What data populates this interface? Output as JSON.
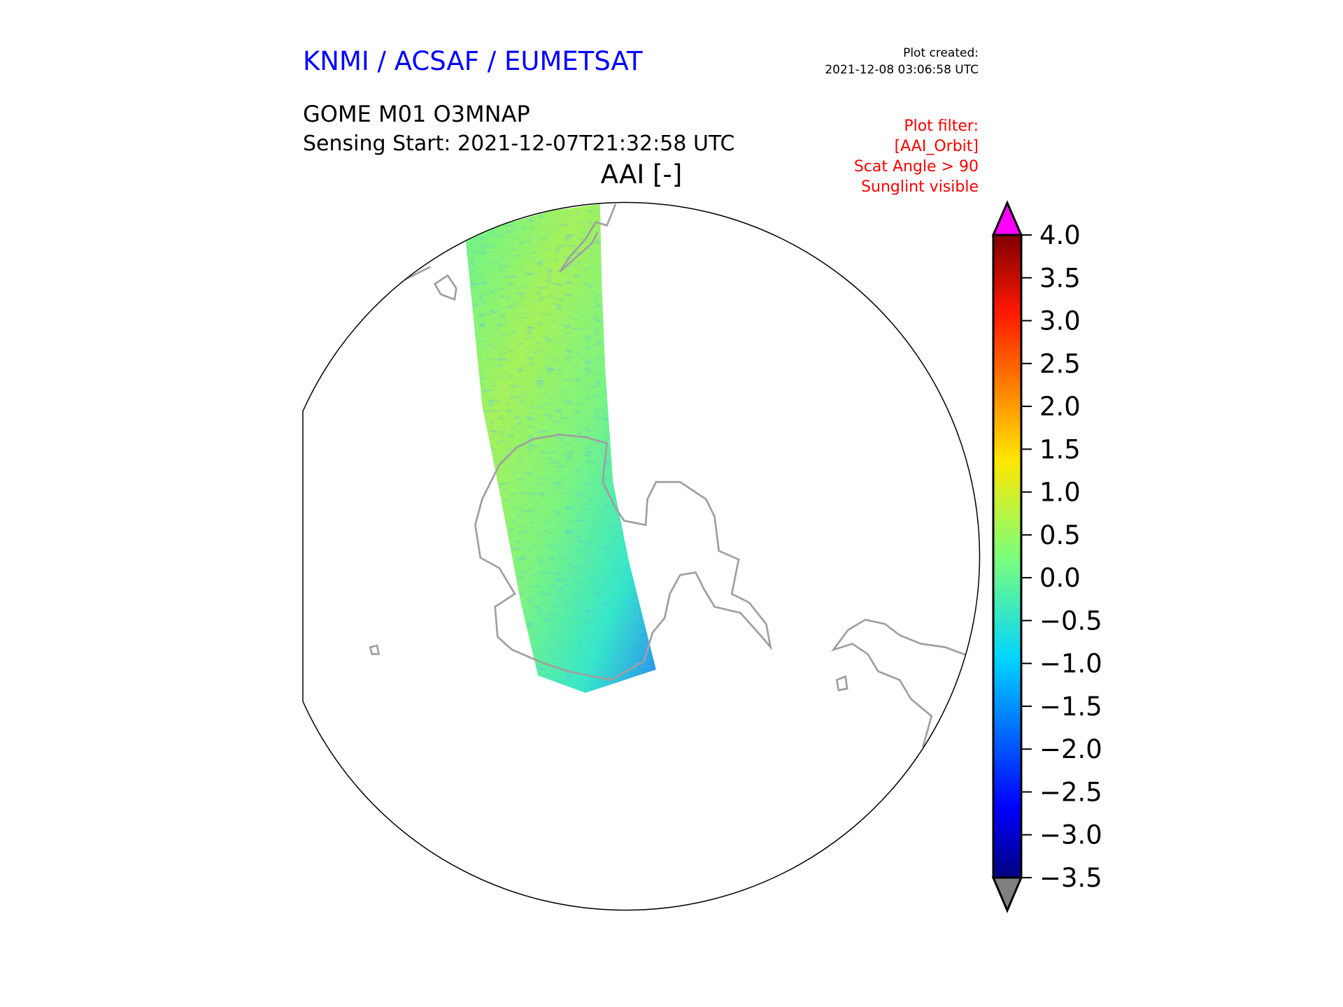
{
  "header": {
    "organization": "KNMI / ACSAF / EUMETSAT",
    "created_label": "Plot created:",
    "created_value": "2021-12-08 03:06:58 UTC",
    "product": "GOME M01 O3MNAP",
    "sensing_start": "Sensing Start: 2021-12-07T21:32:58 UTC",
    "filter_lines": [
      "Plot filter:",
      "[AAI_Orbit]",
      "Scat Angle > 90",
      "Sunglint visible"
    ]
  },
  "chart_data": {
    "type": "heatmap",
    "title": "AAI [-]",
    "projection": "south-polar-stereographic",
    "colorbar": {
      "min": -3.5,
      "max": 4.0,
      "ticks": [
        "4.0",
        "3.5",
        "3.0",
        "2.5",
        "2.0",
        "1.5",
        "1.0",
        "0.5",
        "0.0",
        "−0.5",
        "−1.0",
        "−1.5",
        "−2.0",
        "−2.5",
        "−3.0",
        "−3.5"
      ],
      "tick_values": [
        4.0,
        3.5,
        3.0,
        2.5,
        2.0,
        1.5,
        1.0,
        0.5,
        0.0,
        -0.5,
        -1.0,
        -1.5,
        -2.0,
        -2.5,
        -3.0,
        -3.5
      ],
      "colormap": "jet",
      "over_color": "#ff00ff",
      "under_color": "#808080"
    },
    "swath_typical_range": [
      -1.0,
      1.5
    ]
  }
}
